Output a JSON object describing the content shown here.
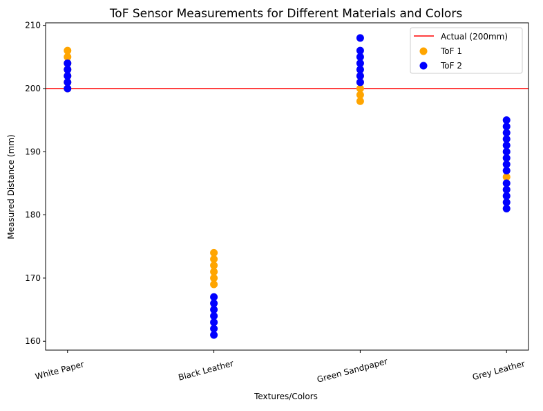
{
  "chart_data": {
    "type": "scatter",
    "title": "ToF Sensor Measurements for Different Materials and Colors",
    "xlabel": "Textures/Colors",
    "ylabel": "Measured Distance (mm)",
    "categories": [
      "White Paper",
      "Black Leather",
      "Green Sandpaper",
      "Grey Leather"
    ],
    "ylim": [
      158.6,
      210.4
    ],
    "yticks": [
      160,
      170,
      180,
      190,
      200,
      210
    ],
    "grid": false,
    "legend": "top-right",
    "reference_line": {
      "name": "Actual (200mm)",
      "y": 200,
      "color": "#ff0000"
    },
    "series": [
      {
        "name": "ToF 1",
        "color": "#ffa500",
        "values": [
          [
            200,
            201,
            202,
            203,
            204,
            205,
            206
          ],
          [
            169,
            170,
            171,
            172,
            173,
            174
          ],
          [
            198,
            199,
            200,
            201,
            202
          ],
          [
            186
          ]
        ]
      },
      {
        "name": "ToF 2",
        "color": "#0000ff",
        "values": [
          [
            200,
            201,
            202,
            203,
            204
          ],
          [
            161,
            162,
            163,
            164,
            165,
            166,
            167
          ],
          [
            201,
            202,
            203,
            204,
            205,
            206,
            208
          ],
          [
            181,
            182,
            183,
            184,
            185,
            187,
            188,
            189,
            190,
            191,
            192,
            193,
            194,
            195
          ]
        ]
      }
    ]
  }
}
